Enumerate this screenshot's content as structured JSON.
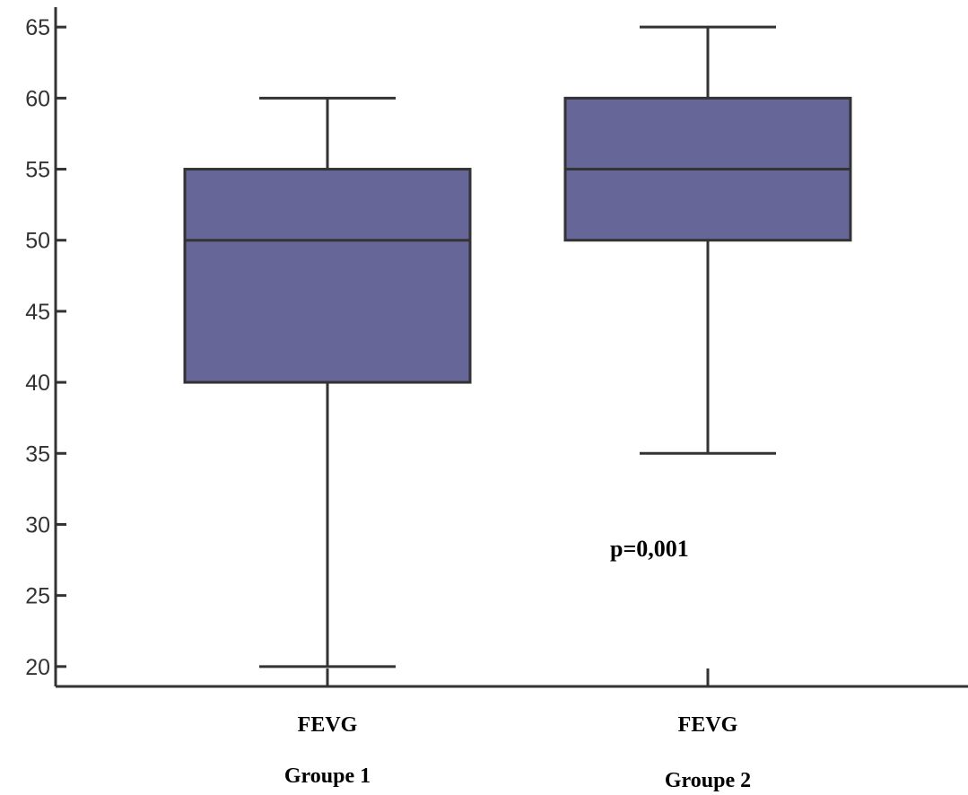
{
  "chart_data": {
    "type": "boxplot",
    "title": "",
    "xlabel": "",
    "ylabel": "",
    "ylim": [
      18.6,
      66.4
    ],
    "yticks": [
      20,
      25,
      30,
      35,
      40,
      45,
      50,
      55,
      60,
      65
    ],
    "grid": false,
    "legend": "none",
    "box_color": "#666699",
    "line_color": "#333333",
    "categories": [
      {
        "label": "FEVG",
        "group": "Groupe 1"
      },
      {
        "label": "FEVG",
        "group": "Groupe 2"
      }
    ],
    "boxes": [
      {
        "min": 20,
        "q1": 40,
        "median": 50,
        "q3": 55,
        "max": 60
      },
      {
        "min": 35,
        "q1": 50,
        "median": 55,
        "q3": 60,
        "max": 65
      }
    ],
    "annotations": [
      {
        "text": "p=0,001"
      }
    ]
  }
}
